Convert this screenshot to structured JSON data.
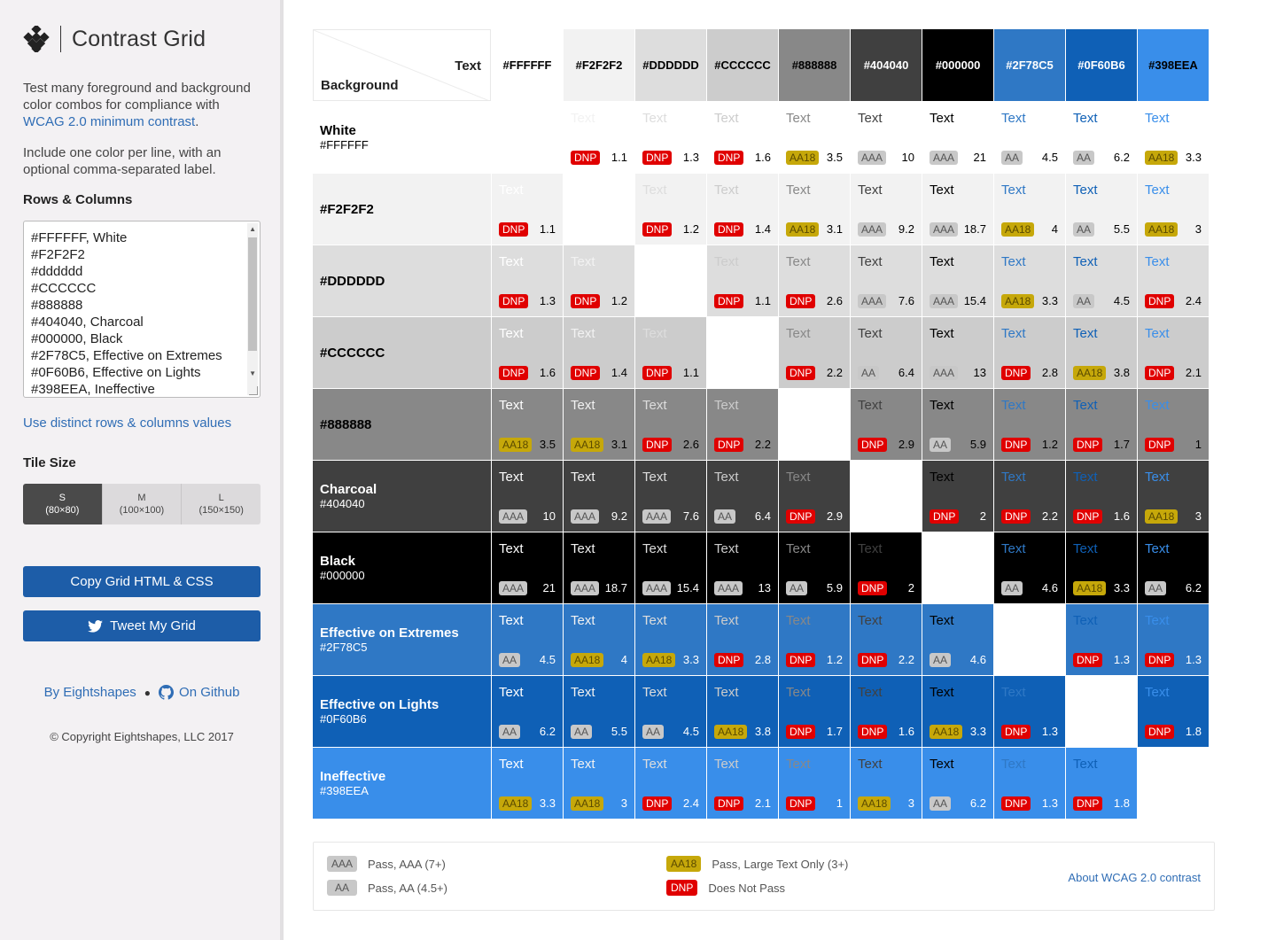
{
  "sidebar": {
    "title": "Contrast Grid",
    "intro_text": "Test many foreground and background color combos for compliance with ",
    "intro_link": "WCAG 2.0 minimum contrast",
    "intro_end": ".",
    "intro2": "Include one color per line, with an optional comma-separated label.",
    "rows_columns_label": "Rows & Columns",
    "textarea_lines": "#FFFFFF, White\n#F2F2F2\n#dddddd\n#CCCCCC\n#888888\n#404040, Charcoal\n#000000, Black\n#2F78C5, Effective on Extremes\n#0F60B6, Effective on Lights\n#398EEA, Ineffective",
    "distinct_link": "Use distinct rows & columns values",
    "tile_size_label": "Tile Size",
    "tiles": [
      {
        "size": "S",
        "dims": "(80×80)"
      },
      {
        "size": "M",
        "dims": "(100×100)"
      },
      {
        "size": "L",
        "dims": "(150×150)"
      }
    ],
    "copy_button": "Copy Grid HTML & CSS",
    "tweet_button": "Tweet My Grid",
    "by_link": "By Eightshapes",
    "github_link": "On Github",
    "copyright": "© Copyright Eightshapes, LLC 2017"
  },
  "grid": {
    "corner_text": "Text",
    "corner_background": "Background",
    "sample_text": "Text",
    "columns": [
      {
        "hex": "#FFFFFF",
        "bg": "#FFFFFF",
        "fg": "#000000"
      },
      {
        "hex": "#F2F2F2",
        "bg": "#F2F2F2",
        "fg": "#000000"
      },
      {
        "hex": "#DDDDDD",
        "bg": "#DDDDDD",
        "fg": "#000000"
      },
      {
        "hex": "#CCCCCC",
        "bg": "#CCCCCC",
        "fg": "#000000"
      },
      {
        "hex": "#888888",
        "bg": "#888888",
        "fg": "#000000"
      },
      {
        "hex": "#404040",
        "bg": "#404040",
        "fg": "#FFFFFF"
      },
      {
        "hex": "#000000",
        "bg": "#000000",
        "fg": "#FFFFFF"
      },
      {
        "hex": "#2F78C5",
        "bg": "#2F78C5",
        "fg": "#FFFFFF"
      },
      {
        "hex": "#0F60B6",
        "bg": "#0F60B6",
        "fg": "#FFFFFF"
      },
      {
        "hex": "#398EEA",
        "bg": "#398EEA",
        "fg": "#000000"
      }
    ],
    "rows": [
      {
        "name": "White",
        "hex": "#FFFFFF",
        "bg": "#FFFFFF",
        "fg": "#000000",
        "cells": [
          null,
          [
            "DNP",
            "1.1"
          ],
          [
            "DNP",
            "1.3"
          ],
          [
            "DNP",
            "1.6"
          ],
          [
            "AA18",
            "3.5"
          ],
          [
            "AAA",
            "10"
          ],
          [
            "AAA",
            "21"
          ],
          [
            "AA",
            "4.5"
          ],
          [
            "AA",
            "6.2"
          ],
          [
            "AA18",
            "3.3"
          ]
        ]
      },
      {
        "name": "",
        "hex": "#F2F2F2",
        "bg": "#F2F2F2",
        "fg": "#000000",
        "cells": [
          [
            "DNP",
            "1.1"
          ],
          null,
          [
            "DNP",
            "1.2"
          ],
          [
            "DNP",
            "1.4"
          ],
          [
            "AA18",
            "3.1"
          ],
          [
            "AAA",
            "9.2"
          ],
          [
            "AAA",
            "18.7"
          ],
          [
            "AA18",
            "4"
          ],
          [
            "AA",
            "5.5"
          ],
          [
            "AA18",
            "3"
          ]
        ]
      },
      {
        "name": "",
        "hex": "#DDDDDD",
        "bg": "#DDDDDD",
        "fg": "#000000",
        "cells": [
          [
            "DNP",
            "1.3"
          ],
          [
            "DNP",
            "1.2"
          ],
          null,
          [
            "DNP",
            "1.1"
          ],
          [
            "DNP",
            "2.6"
          ],
          [
            "AAA",
            "7.6"
          ],
          [
            "AAA",
            "15.4"
          ],
          [
            "AA18",
            "3.3"
          ],
          [
            "AA",
            "4.5"
          ],
          [
            "DNP",
            "2.4"
          ]
        ]
      },
      {
        "name": "",
        "hex": "#CCCCCC",
        "bg": "#CCCCCC",
        "fg": "#000000",
        "cells": [
          [
            "DNP",
            "1.6"
          ],
          [
            "DNP",
            "1.4"
          ],
          [
            "DNP",
            "1.1"
          ],
          null,
          [
            "DNP",
            "2.2"
          ],
          [
            "AA",
            "6.4"
          ],
          [
            "AAA",
            "13"
          ],
          [
            "DNP",
            "2.8"
          ],
          [
            "AA18",
            "3.8"
          ],
          [
            "DNP",
            "2.1"
          ]
        ]
      },
      {
        "name": "",
        "hex": "#888888",
        "bg": "#888888",
        "fg": "#000000",
        "cells": [
          [
            "AA18",
            "3.5"
          ],
          [
            "AA18",
            "3.1"
          ],
          [
            "DNP",
            "2.6"
          ],
          [
            "DNP",
            "2.2"
          ],
          null,
          [
            "DNP",
            "2.9"
          ],
          [
            "AA",
            "5.9"
          ],
          [
            "DNP",
            "1.2"
          ],
          [
            "DNP",
            "1.7"
          ],
          [
            "DNP",
            "1"
          ]
        ]
      },
      {
        "name": "Charcoal",
        "hex": "#404040",
        "bg": "#404040",
        "fg": "#FFFFFF",
        "cells": [
          [
            "AAA",
            "10"
          ],
          [
            "AAA",
            "9.2"
          ],
          [
            "AAA",
            "7.6"
          ],
          [
            "AA",
            "6.4"
          ],
          [
            "DNP",
            "2.9"
          ],
          null,
          [
            "DNP",
            "2"
          ],
          [
            "DNP",
            "2.2"
          ],
          [
            "DNP",
            "1.6"
          ],
          [
            "AA18",
            "3"
          ]
        ]
      },
      {
        "name": "Black",
        "hex": "#000000",
        "bg": "#000000",
        "fg": "#FFFFFF",
        "cells": [
          [
            "AAA",
            "21"
          ],
          [
            "AAA",
            "18.7"
          ],
          [
            "AAA",
            "15.4"
          ],
          [
            "AAA",
            "13"
          ],
          [
            "AA",
            "5.9"
          ],
          [
            "DNP",
            "2"
          ],
          null,
          [
            "AA",
            "4.6"
          ],
          [
            "AA18",
            "3.3"
          ],
          [
            "AA",
            "6.2"
          ]
        ]
      },
      {
        "name": "Effective on Extremes",
        "hex": "#2F78C5",
        "bg": "#2F78C5",
        "fg": "#FFFFFF",
        "cells": [
          [
            "AA",
            "4.5"
          ],
          [
            "AA18",
            "4"
          ],
          [
            "AA18",
            "3.3"
          ],
          [
            "DNP",
            "2.8"
          ],
          [
            "DNP",
            "1.2"
          ],
          [
            "DNP",
            "2.2"
          ],
          [
            "AA",
            "4.6"
          ],
          null,
          [
            "DNP",
            "1.3"
          ],
          [
            "DNP",
            "1.3"
          ]
        ]
      },
      {
        "name": "Effective on Lights",
        "hex": "#0F60B6",
        "bg": "#0F60B6",
        "fg": "#FFFFFF",
        "cells": [
          [
            "AA",
            "6.2"
          ],
          [
            "AA",
            "5.5"
          ],
          [
            "AA",
            "4.5"
          ],
          [
            "AA18",
            "3.8"
          ],
          [
            "DNP",
            "1.7"
          ],
          [
            "DNP",
            "1.6"
          ],
          [
            "AA18",
            "3.3"
          ],
          [
            "DNP",
            "1.3"
          ],
          null,
          [
            "DNP",
            "1.8"
          ]
        ]
      },
      {
        "name": "Ineffective",
        "hex": "#398EEA",
        "bg": "#398EEA",
        "fg": "#FFFFFF",
        "cells": [
          [
            "AA18",
            "3.3"
          ],
          [
            "AA18",
            "3"
          ],
          [
            "DNP",
            "2.4"
          ],
          [
            "DNP",
            "2.1"
          ],
          [
            "DNP",
            "1"
          ],
          [
            "AA18",
            "3"
          ],
          [
            "AA",
            "6.2"
          ],
          [
            "DNP",
            "1.3"
          ],
          [
            "DNP",
            "1.8"
          ],
          null
        ]
      }
    ]
  },
  "legend": {
    "aaa_badge": "AAA",
    "aaa_text": "Pass, AAA (7+)",
    "aa_badge": "AA",
    "aa_text": "Pass, AA (4.5+)",
    "aa18_badge": "AA18",
    "aa18_text": "Pass, Large Text Only (3+)",
    "dnp_badge": "DNP",
    "dnp_text": "Does Not Pass",
    "about_link": "About WCAG 2.0 contrast"
  },
  "colors": {
    "accent": "#1D5DA8",
    "link": "#2F6DB5",
    "aa18": "#C6A80A",
    "dnp": "#E00000",
    "aa": "#C8C8C8"
  }
}
